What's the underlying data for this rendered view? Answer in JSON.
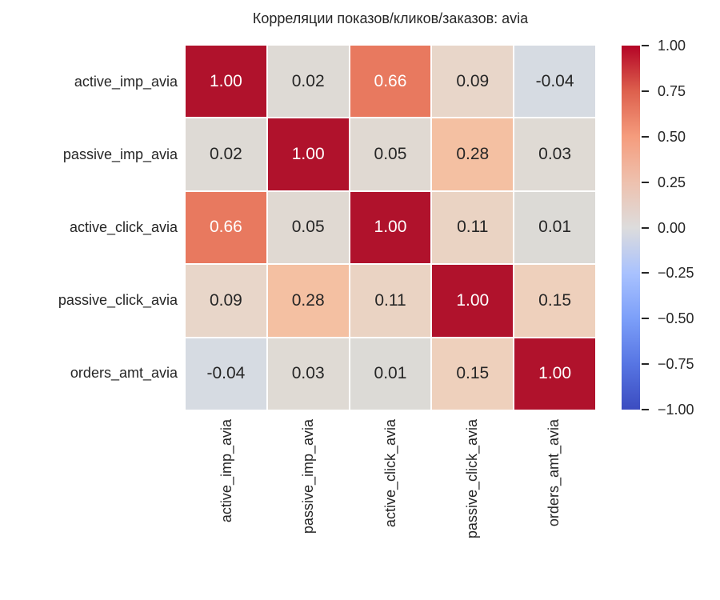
{
  "title": "Корреляции показов/кликов/заказов: avia",
  "colors": {
    "background": "#ffffff",
    "text": "#262626",
    "annot_light": "#ffffff",
    "cell_gap": "#ffffff"
  },
  "chart_data": {
    "type": "heatmap",
    "title": "Корреляции показов/кликов/заказов: avia",
    "labels": [
      "active_imp_avia",
      "passive_imp_avia",
      "active_click_avia",
      "passive_click_avia",
      "orders_amt_avia"
    ],
    "matrix": [
      [
        1.0,
        0.02,
        0.66,
        0.09,
        -0.04
      ],
      [
        0.02,
        1.0,
        0.05,
        0.28,
        0.03
      ],
      [
        0.66,
        0.05,
        1.0,
        0.11,
        0.01
      ],
      [
        0.09,
        0.28,
        0.11,
        1.0,
        0.15
      ],
      [
        -0.04,
        0.03,
        0.01,
        0.15,
        1.0
      ]
    ],
    "cell_labels": [
      [
        "1.00",
        "0.02",
        "0.66",
        "0.09",
        "-0.04"
      ],
      [
        "0.02",
        "1.00",
        "0.05",
        "0.28",
        "0.03"
      ],
      [
        "0.66",
        "0.05",
        "1.00",
        "0.11",
        "0.01"
      ],
      [
        "0.09",
        "0.28",
        "0.11",
        "1.00",
        "0.15"
      ],
      [
        "-0.04",
        "0.03",
        "0.01",
        "0.15",
        "1.00"
      ]
    ],
    "cell_colors": [
      [
        "#b0122c",
        "#dedad5",
        "#e8795f",
        "#e8d6c9",
        "#d6dbe2"
      ],
      [
        "#dedad5",
        "#b0122c",
        "#e0d9d2",
        "#f4c0a2",
        "#dfdad4"
      ],
      [
        "#e8795f",
        "#e0d9d2",
        "#b0122c",
        "#ead3c3",
        "#dcdad6"
      ],
      [
        "#e8d6c9",
        "#f4c0a2",
        "#ead3c3",
        "#b0122c",
        "#eed0bc"
      ],
      [
        "#d6dbe2",
        "#dfdad4",
        "#dcdad6",
        "#eed0bc",
        "#b0122c"
      ]
    ],
    "cell_text_colors": [
      [
        "#ffffff",
        "#262626",
        "#ffffff",
        "#262626",
        "#262626"
      ],
      [
        "#262626",
        "#ffffff",
        "#262626",
        "#262626",
        "#262626"
      ],
      [
        "#ffffff",
        "#262626",
        "#ffffff",
        "#262626",
        "#262626"
      ],
      [
        "#262626",
        "#262626",
        "#262626",
        "#ffffff",
        "#262626"
      ],
      [
        "#262626",
        "#262626",
        "#262626",
        "#262626",
        "#ffffff"
      ]
    ],
    "value_range": [
      -1,
      1
    ],
    "grid": false,
    "colorbar": {
      "position": "right",
      "colormap": "coolwarm",
      "ticks": [
        "1.00",
        "0.75",
        "0.50",
        "0.25",
        "0.00",
        "−0.25",
        "−0.50",
        "−0.75",
        "−1.00"
      ],
      "gradient_top_to_bottom": [
        "#b40426",
        "#dd604d",
        "#f59c7d",
        "#eec1ae",
        "#dddcdc",
        "#a9c2fe",
        "#7c9ff9",
        "#5775e3",
        "#3b4cc0"
      ]
    }
  }
}
